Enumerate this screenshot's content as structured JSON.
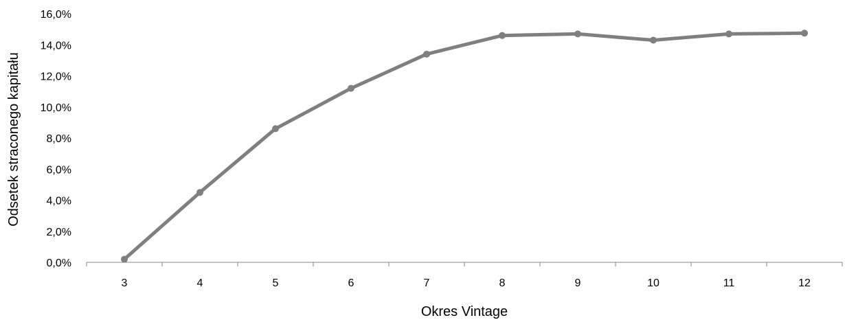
{
  "chart_data": {
    "type": "line",
    "x": [
      3,
      4,
      5,
      6,
      7,
      8,
      9,
      10,
      11,
      12
    ],
    "categories": [
      "3",
      "4",
      "5",
      "6",
      "7",
      "8",
      "9",
      "10",
      "11",
      "12"
    ],
    "series": [
      {
        "values": [
          0.2,
          4.5,
          8.6,
          11.2,
          13.4,
          14.6,
          14.7,
          14.3,
          14.7,
          14.75
        ],
        "color": "#7f7f7f"
      }
    ],
    "xlabel": "Okres Vintage",
    "ylabel": "Odsetek straconego kapitału",
    "ylim": [
      0,
      16
    ],
    "yticks": [
      0,
      2,
      4,
      6,
      8,
      10,
      12,
      14,
      16
    ],
    "ytick_labels": [
      "0,0%",
      "2,0%",
      "4,0%",
      "6,0%",
      "8,0%",
      "10,0%",
      "12,0%",
      "14,0%",
      "16,0%"
    ],
    "grid": false,
    "legend": "none"
  }
}
